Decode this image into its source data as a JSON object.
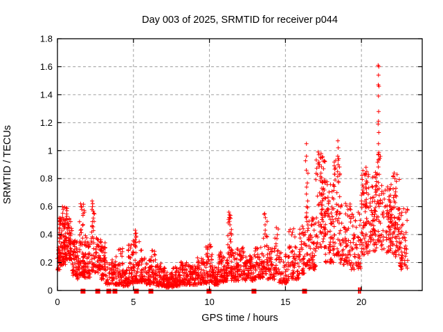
{
  "chart_data": {
    "type": "scatter",
    "title": "Day 003 of 2025, SRMTID for receiver p044",
    "xlabel": "GPS time / hours",
    "ylabel": "SRMTID / TECUs",
    "xlim": [
      0,
      24
    ],
    "ylim": [
      0,
      1.8
    ],
    "xticks": {
      "values": [
        0,
        5,
        10,
        15,
        20
      ],
      "labels": [
        "0",
        "5",
        "10",
        "15",
        "20"
      ]
    },
    "yticks": {
      "values": [
        0,
        0.2,
        0.4,
        0.6,
        0.8,
        1.0,
        1.2,
        1.4,
        1.6,
        1.8
      ],
      "labels": [
        "0",
        "0.2",
        "0.4",
        "0.6",
        "0.8",
        "1",
        "1.2",
        "1.4",
        "1.6",
        "1.8"
      ]
    },
    "grid": true,
    "grid_style": "dashed",
    "legend": "none",
    "colors": {
      "marker": "#ff0000",
      "grid": "#9e9e9e",
      "border": "#000000",
      "text": "#000000",
      "background": "#ffffff"
    },
    "series": [
      {
        "name": "srmtid-values",
        "marker": "plus",
        "cluster_format": [
          "x_start_hours",
          "x_end_hours",
          "y_min_TECUs",
          "y_max_TECUs",
          "point_count",
          "bottom_bias_exponent"
        ],
        "clusters": [
          [
            0.0,
            0.15,
            0.14,
            0.32,
            22,
            1.3
          ],
          [
            0.1,
            0.55,
            0.18,
            0.52,
            95,
            1.4
          ],
          [
            0.3,
            0.65,
            0.45,
            0.6,
            14,
            1.0
          ],
          [
            0.55,
            0.95,
            0.22,
            0.52,
            75,
            1.4
          ],
          [
            0.95,
            1.3,
            0.1,
            0.36,
            48,
            1.5
          ],
          [
            1.3,
            1.5,
            0.08,
            0.28,
            22,
            1.5
          ],
          [
            1.45,
            1.8,
            0.1,
            0.62,
            65,
            1.7
          ],
          [
            1.8,
            2.18,
            0.09,
            0.4,
            48,
            1.6
          ],
          [
            2.2,
            2.45,
            0.14,
            0.64,
            34,
            1.7
          ],
          [
            2.45,
            2.85,
            0.12,
            0.38,
            48,
            1.4
          ],
          [
            2.85,
            3.15,
            0.08,
            0.35,
            36,
            1.5
          ],
          [
            3.05,
            3.15,
            0.22,
            0.45,
            8,
            1.2
          ],
          [
            3.15,
            3.85,
            0.04,
            0.22,
            60,
            1.5
          ],
          [
            3.85,
            4.3,
            0.04,
            0.3,
            52,
            1.8
          ],
          [
            4.3,
            4.65,
            0.03,
            0.15,
            38,
            1.4
          ],
          [
            4.65,
            5.0,
            0.05,
            0.36,
            46,
            2.0
          ],
          [
            5.0,
            5.4,
            0.06,
            0.43,
            50,
            2.0
          ],
          [
            5.4,
            5.78,
            0.06,
            0.3,
            42,
            1.7
          ],
          [
            5.78,
            6.15,
            0.04,
            0.22,
            44,
            1.6
          ],
          [
            6.15,
            6.5,
            0.05,
            0.3,
            40,
            1.8
          ],
          [
            6.5,
            7.1,
            0.03,
            0.2,
            68,
            1.6
          ],
          [
            7.1,
            7.6,
            0.02,
            0.13,
            58,
            1.4
          ],
          [
            7.6,
            8.1,
            0.03,
            0.17,
            60,
            1.5
          ],
          [
            8.1,
            8.6,
            0.04,
            0.21,
            60,
            1.6
          ],
          [
            8.6,
            9.2,
            0.04,
            0.18,
            66,
            1.5
          ],
          [
            9.2,
            9.7,
            0.05,
            0.24,
            58,
            1.6
          ],
          [
            9.7,
            10.2,
            0.05,
            0.33,
            55,
            1.9
          ],
          [
            10.2,
            10.6,
            0.04,
            0.18,
            48,
            1.5
          ],
          [
            10.6,
            11.0,
            0.06,
            0.28,
            50,
            1.7
          ],
          [
            11.0,
            11.2,
            0.06,
            0.22,
            24,
            1.5
          ],
          [
            11.2,
            11.45,
            0.1,
            0.56,
            38,
            2.0
          ],
          [
            11.45,
            12.0,
            0.07,
            0.3,
            62,
            1.7
          ],
          [
            12.0,
            12.35,
            0.08,
            0.31,
            38,
            1.6
          ],
          [
            12.35,
            13.0,
            0.07,
            0.26,
            68,
            1.6
          ],
          [
            13.0,
            13.55,
            0.09,
            0.31,
            56,
            1.6
          ],
          [
            13.55,
            13.8,
            0.12,
            0.55,
            28,
            1.9
          ],
          [
            13.8,
            14.3,
            0.08,
            0.31,
            54,
            1.6
          ],
          [
            14.3,
            14.55,
            0.12,
            0.45,
            24,
            1.7
          ],
          [
            14.55,
            15.2,
            0.05,
            0.27,
            56,
            1.5
          ],
          [
            15.2,
            15.9,
            0.08,
            0.46,
            62,
            1.7
          ],
          [
            15.9,
            16.3,
            0.12,
            0.46,
            40,
            1.6
          ],
          [
            16.3,
            16.5,
            0.18,
            0.95,
            26,
            2.1
          ],
          [
            16.5,
            17.0,
            0.15,
            0.52,
            56,
            1.5
          ],
          [
            17.0,
            17.6,
            0.3,
            0.98,
            88,
            1.3
          ],
          [
            17.6,
            18.15,
            0.2,
            0.78,
            70,
            1.5
          ],
          [
            18.15,
            18.6,
            0.25,
            0.95,
            58,
            1.6
          ],
          [
            18.6,
            19.3,
            0.18,
            0.63,
            68,
            1.5
          ],
          [
            19.3,
            19.95,
            0.15,
            0.56,
            58,
            1.5
          ],
          [
            20.0,
            20.65,
            0.25,
            0.86,
            88,
            1.3
          ],
          [
            20.65,
            21.05,
            0.28,
            0.85,
            56,
            1.5
          ],
          [
            21.05,
            21.25,
            0.35,
            1.0,
            30,
            1.5
          ],
          [
            21.25,
            22.0,
            0.27,
            0.76,
            82,
            1.4
          ],
          [
            22.0,
            22.5,
            0.24,
            0.84,
            66,
            1.4
          ],
          [
            22.5,
            23.05,
            0.15,
            0.62,
            58,
            1.5
          ]
        ],
        "outliers": [
          [
            0.33,
            0.6
          ],
          [
            0.38,
            0.58
          ],
          [
            0.58,
            0.59
          ],
          [
            0.62,
            0.57
          ],
          [
            1.52,
            0.62
          ],
          [
            1.56,
            0.6
          ],
          [
            1.6,
            0.58
          ],
          [
            2.28,
            0.64
          ],
          [
            2.32,
            0.62
          ],
          [
            2.3,
            0.6
          ],
          [
            5.12,
            0.43
          ],
          [
            5.18,
            0.41
          ],
          [
            10.03,
            0.33
          ],
          [
            10.07,
            0.31
          ],
          [
            11.28,
            0.56
          ],
          [
            11.32,
            0.54
          ],
          [
            11.3,
            0.52
          ],
          [
            11.35,
            0.47
          ],
          [
            13.63,
            0.55
          ],
          [
            13.68,
            0.52
          ],
          [
            13.66,
            0.47
          ],
          [
            14.4,
            0.45
          ],
          [
            16.38,
            1.05
          ],
          [
            16.38,
            0.96
          ],
          [
            16.37,
            0.86
          ],
          [
            16.39,
            0.74
          ],
          [
            16.38,
            0.69
          ],
          [
            16.4,
            0.6
          ],
          [
            16.36,
            0.52
          ],
          [
            17.15,
            0.99
          ],
          [
            17.2,
            0.97
          ],
          [
            17.3,
            0.95
          ],
          [
            17.25,
            0.9
          ],
          [
            18.45,
            1.07
          ],
          [
            18.47,
            1.02
          ],
          [
            18.44,
            0.96
          ],
          [
            18.46,
            0.9
          ],
          [
            18.43,
            0.85
          ],
          [
            18.48,
            0.78
          ],
          [
            20.3,
            0.88
          ],
          [
            20.35,
            0.85
          ],
          [
            20.25,
            0.83
          ],
          [
            21.1,
            1.61
          ],
          [
            21.14,
            1.6
          ],
          [
            21.12,
            1.54
          ],
          [
            21.11,
            1.47
          ],
          [
            21.15,
            1.46
          ],
          [
            21.12,
            1.39
          ],
          [
            21.13,
            1.28
          ],
          [
            21.12,
            1.21
          ],
          [
            21.1,
            1.19
          ],
          [
            21.14,
            1.13
          ],
          [
            21.12,
            1.05
          ],
          [
            21.11,
            0.97
          ],
          [
            21.13,
            0.93
          ],
          [
            22.1,
            0.82
          ],
          [
            22.2,
            0.8
          ],
          [
            22.3,
            0.78
          ],
          [
            22.15,
            0.84
          ]
        ]
      },
      {
        "name": "baseline-squares",
        "marker": "filled-square",
        "y": 0,
        "x": [
          1.68,
          2.65,
          3.38,
          3.78,
          5.19,
          6.15,
          9.97,
          12.93,
          16.26
        ]
      },
      {
        "name": "baseline-bars",
        "marker": "vertical-bar",
        "y": 0,
        "x": [
          19.82,
          19.93
        ]
      }
    ]
  }
}
